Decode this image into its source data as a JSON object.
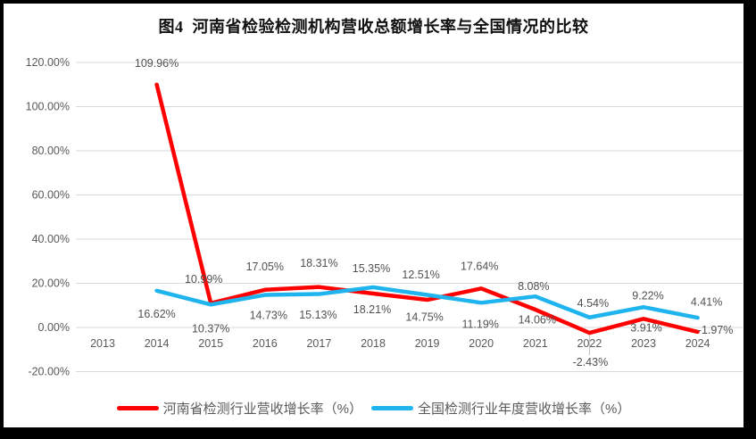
{
  "frame": {
    "outer_bg": "#000000",
    "panel_bg": "#ffffff"
  },
  "title": "图4  河南省检验检测机构营收总额增长率与全国情况的比较",
  "chart_data": {
    "type": "line",
    "title": "图4  河南省检验检测机构营收总额增长率与全国情况的比较",
    "categories": [
      "2013",
      "2014",
      "2015",
      "2016",
      "2017",
      "2018",
      "2019",
      "2020",
      "2021",
      "2022",
      "2023",
      "2024"
    ],
    "series": [
      {
        "name": "河南省检测行业营收增长率（%）",
        "color": "#FF0000",
        "values": [
          null,
          109.96,
          10.99,
          17.05,
          18.31,
          15.35,
          12.51,
          17.64,
          8.08,
          -2.43,
          3.91,
          -1.97
        ]
      },
      {
        "name": "全国检测行业年度营收增长率（%）",
        "color": "#1FB4EE",
        "values": [
          null,
          16.62,
          10.37,
          14.73,
          15.13,
          18.21,
          14.75,
          11.19,
          14.06,
          4.54,
          9.22,
          4.41
        ]
      }
    ],
    "ylim": [
      -20,
      120
    ],
    "ytick_values": [
      120,
      100,
      80,
      60,
      40,
      20,
      0,
      -20
    ],
    "ytick_labels": [
      "120.00%",
      "100.00%",
      "80.00%",
      "60.00%",
      "40.00%",
      "20.00%",
      "0.00%",
      "-20.00%"
    ],
    "data_label_format": "0.00%",
    "grid": "horizontal",
    "gridline_color": "#D9D9D9",
    "leader_line_color": "#BFBFBF",
    "axis_text_color": "#595959",
    "data_label_color": "#515151",
    "legend_position": "bottom"
  }
}
